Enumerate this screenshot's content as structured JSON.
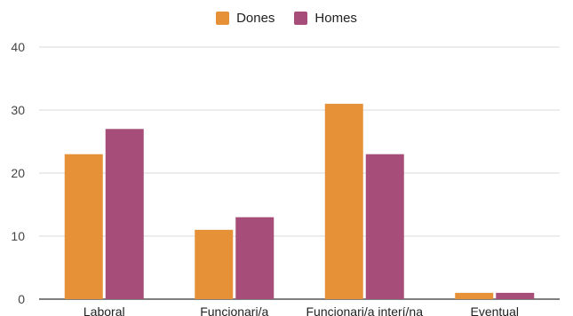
{
  "chart_data": {
    "type": "bar",
    "categories": [
      "Laboral",
      "Funcionari/a",
      "Funcionari/a interí/na",
      "Eventual"
    ],
    "series": [
      {
        "name": "Dones",
        "values": [
          23,
          11,
          31,
          1
        ],
        "color": "#e69138"
      },
      {
        "name": "Homes",
        "values": [
          27,
          13,
          23,
          1
        ],
        "color": "#a64d79"
      }
    ],
    "ylim": [
      0,
      40
    ],
    "yticks": [
      0,
      10,
      20,
      30,
      40
    ],
    "grid": true,
    "legend_position": "top-center"
  }
}
